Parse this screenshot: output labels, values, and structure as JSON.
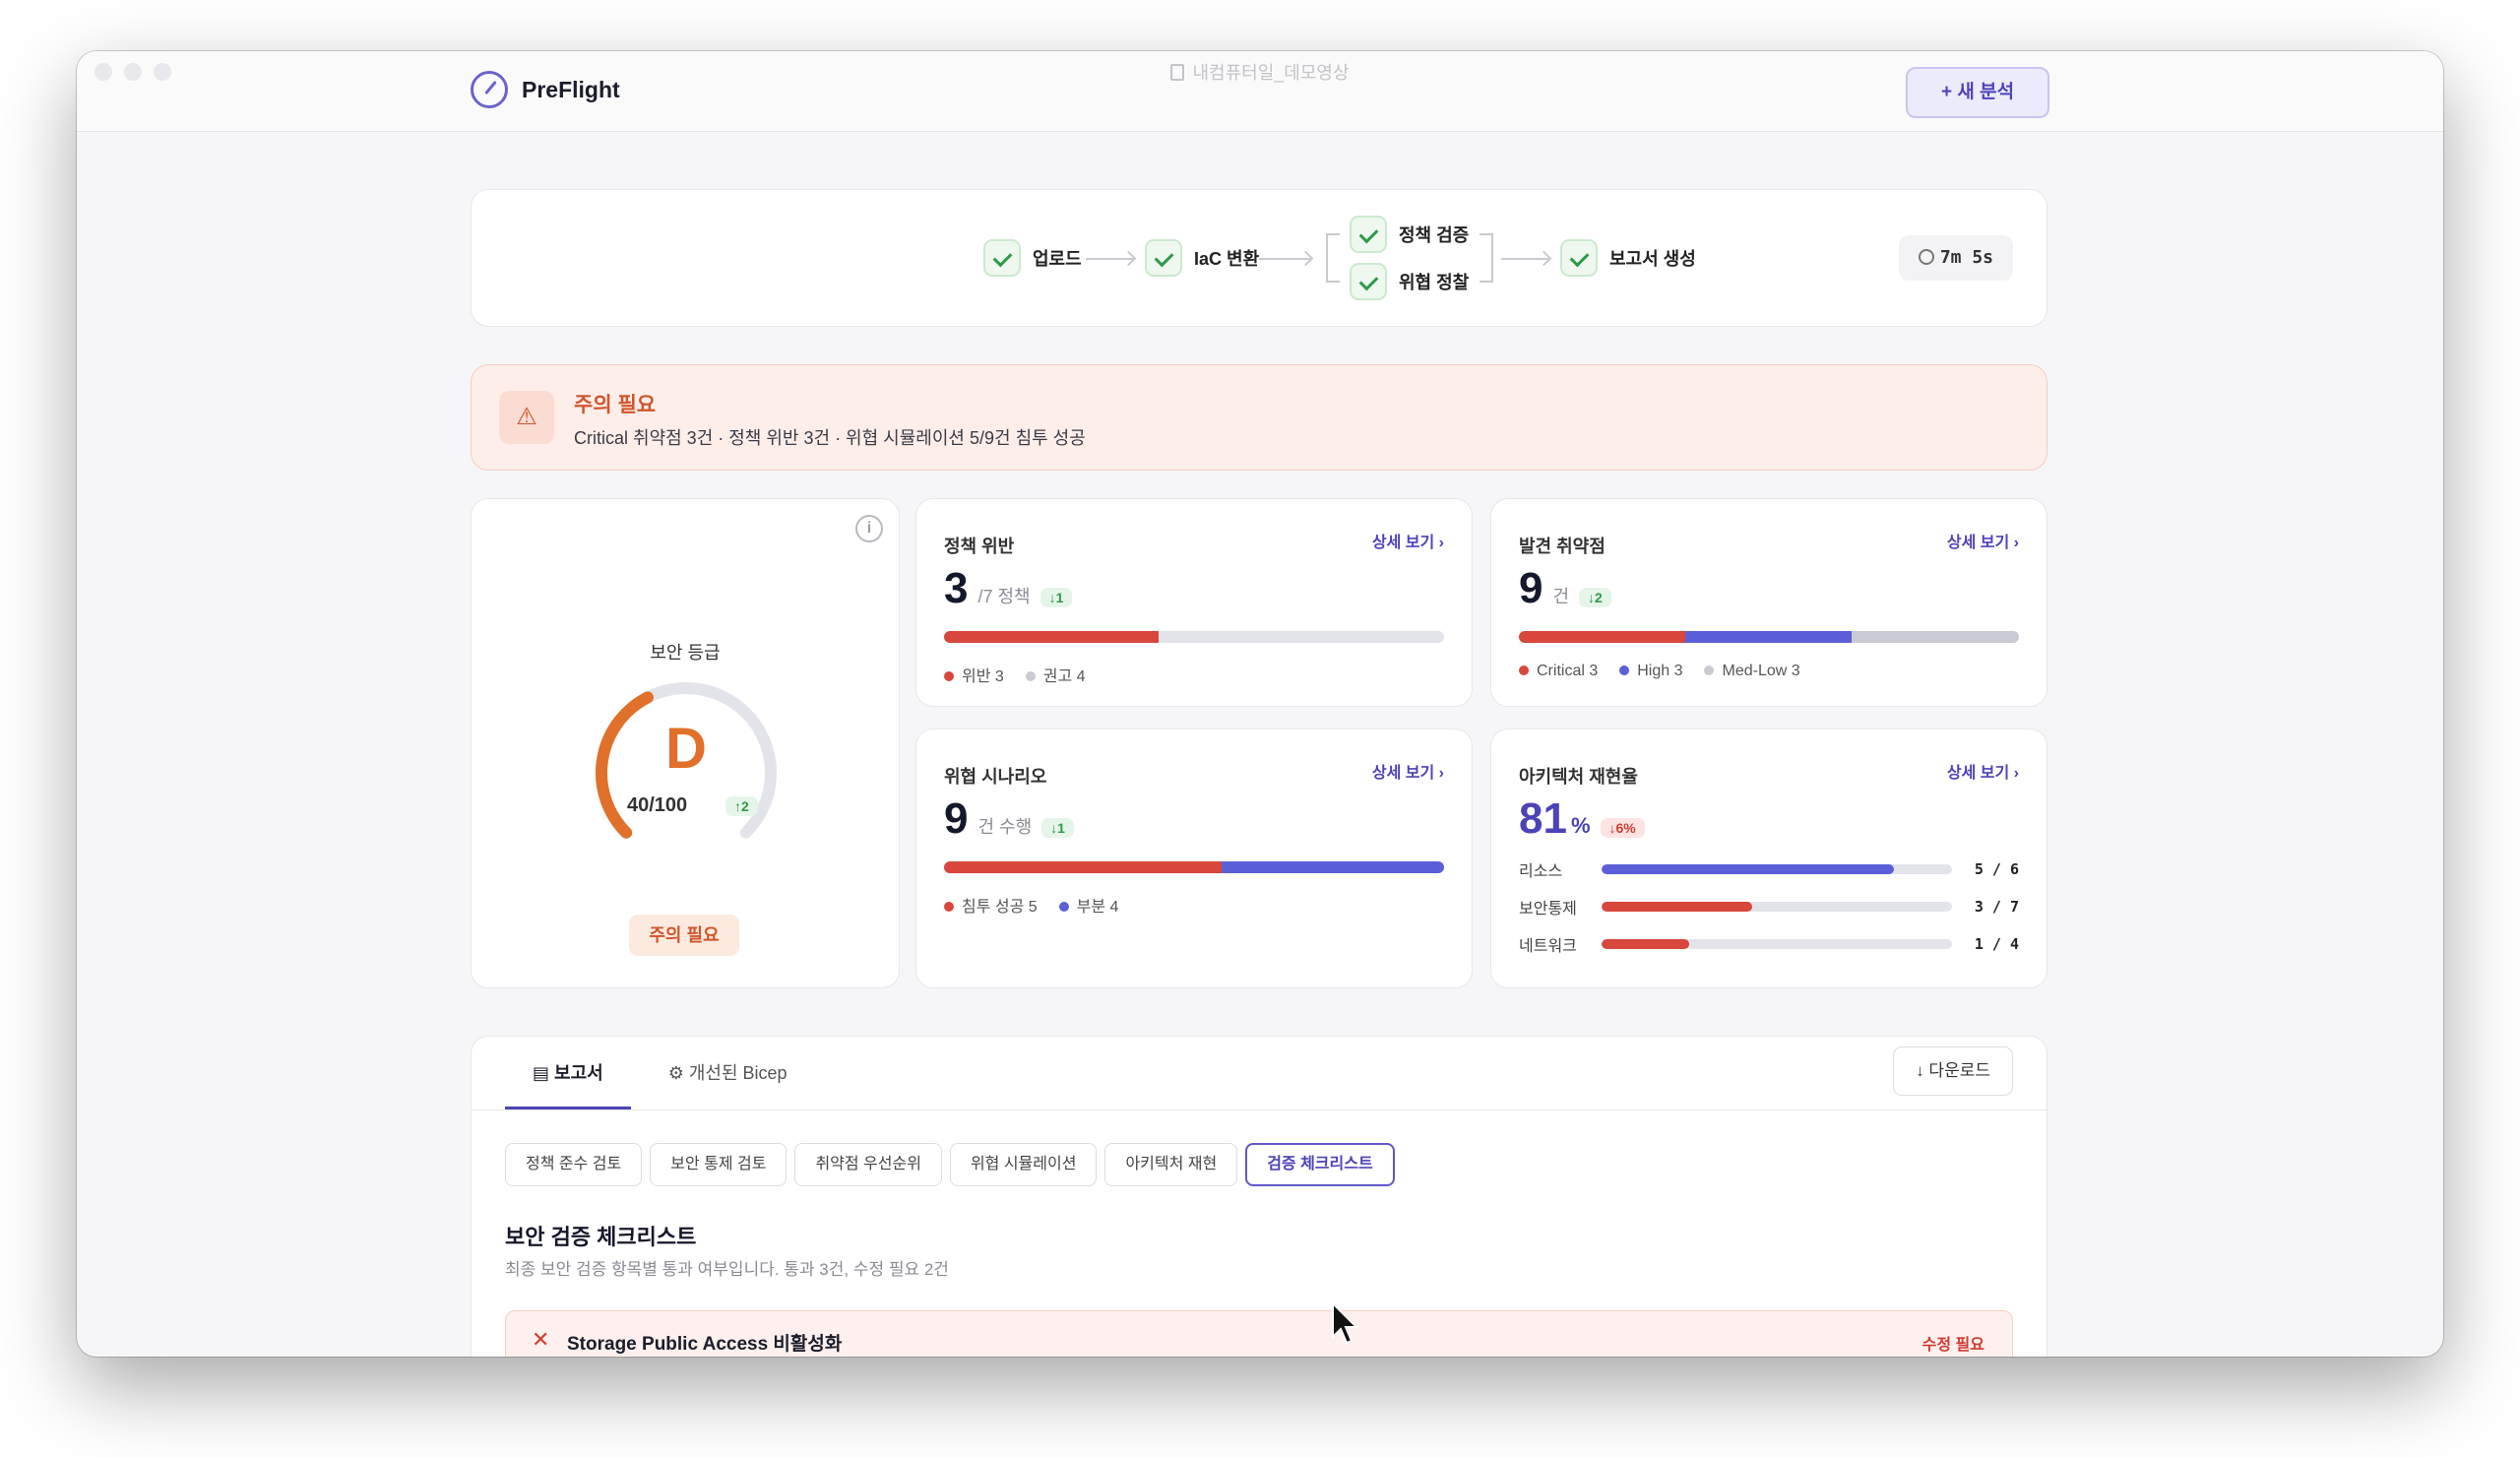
{
  "window": {
    "title": "내컴퓨터일_데모영상"
  },
  "header": {
    "brand": "PreFlight",
    "new_button": "+ 새 분석"
  },
  "pipeline": {
    "steps": [
      {
        "label": "업로드"
      },
      {
        "label": "IaC 변환"
      },
      {
        "label": "정책 검증"
      },
      {
        "label": "위협 정찰"
      },
      {
        "label": "보고서 생성"
      }
    ],
    "elapsed": "7m 5s"
  },
  "alert": {
    "title": "주의 필요",
    "text": "Critical 취약점 3건 · 정책 위반 3건 · 위협 시뮬레이션 5/9건 침투 성공"
  },
  "grade": {
    "label": "보안 등급",
    "letter": "D",
    "score": "40/100",
    "delta": "↑2",
    "status": "주의 필요",
    "progress": 0.4
  },
  "metrics": {
    "policy": {
      "title": "정책 위반",
      "link": "상세 보기 ›",
      "value": "3",
      "unit": "/7 정책",
      "delta": "↓1",
      "legend": [
        "위반 3",
        "권고 4"
      ]
    },
    "vuln": {
      "title": "발견 취약점",
      "link": "상세 보기 ›",
      "value": "9",
      "unit": "건",
      "delta": "↓2",
      "legend": [
        "Critical 3",
        "High 3",
        "Med-Low 3"
      ]
    },
    "threat": {
      "title": "위협 시나리오",
      "link": "상세 보기 ›",
      "value": "9",
      "unit": "건 수행",
      "delta": "↓1",
      "legend": [
        "침투 성공 5",
        "부분 4"
      ]
    },
    "arch": {
      "title": "아키텍처 재현율",
      "link": "상세 보기 ›",
      "value": "81",
      "unit": "%",
      "delta": "↓6%",
      "rows": [
        {
          "label": "리소스",
          "count": "5 / 6"
        },
        {
          "label": "보안통제",
          "count": "3 / 7"
        },
        {
          "label": "네트워크",
          "count": "1 / 4"
        }
      ]
    }
  },
  "colors": {
    "accent": "#4d43b8",
    "critical": "#d9463b",
    "high": "#5b5fd8",
    "neutral": "#c9cad2",
    "grade": "#e0702a"
  },
  "report": {
    "tabs": [
      "보고서",
      "개선된 Bicep"
    ],
    "download": "↓ 다운로드",
    "subtabs": [
      "정책 준수 검토",
      "보안 통제 검토",
      "취약점 우선순위",
      "위협 시뮬레이션",
      "아키텍처 재현",
      "검증 체크리스트"
    ],
    "section_title": "보안 검증 체크리스트",
    "section_desc": "최종 보안 검증 항목별 통과 여부입니다. 통과 3건, 수정 필요 2건",
    "items": [
      {
        "title": "Storage Public Access 비활성화",
        "status": "수정 필요"
      }
    ]
  }
}
